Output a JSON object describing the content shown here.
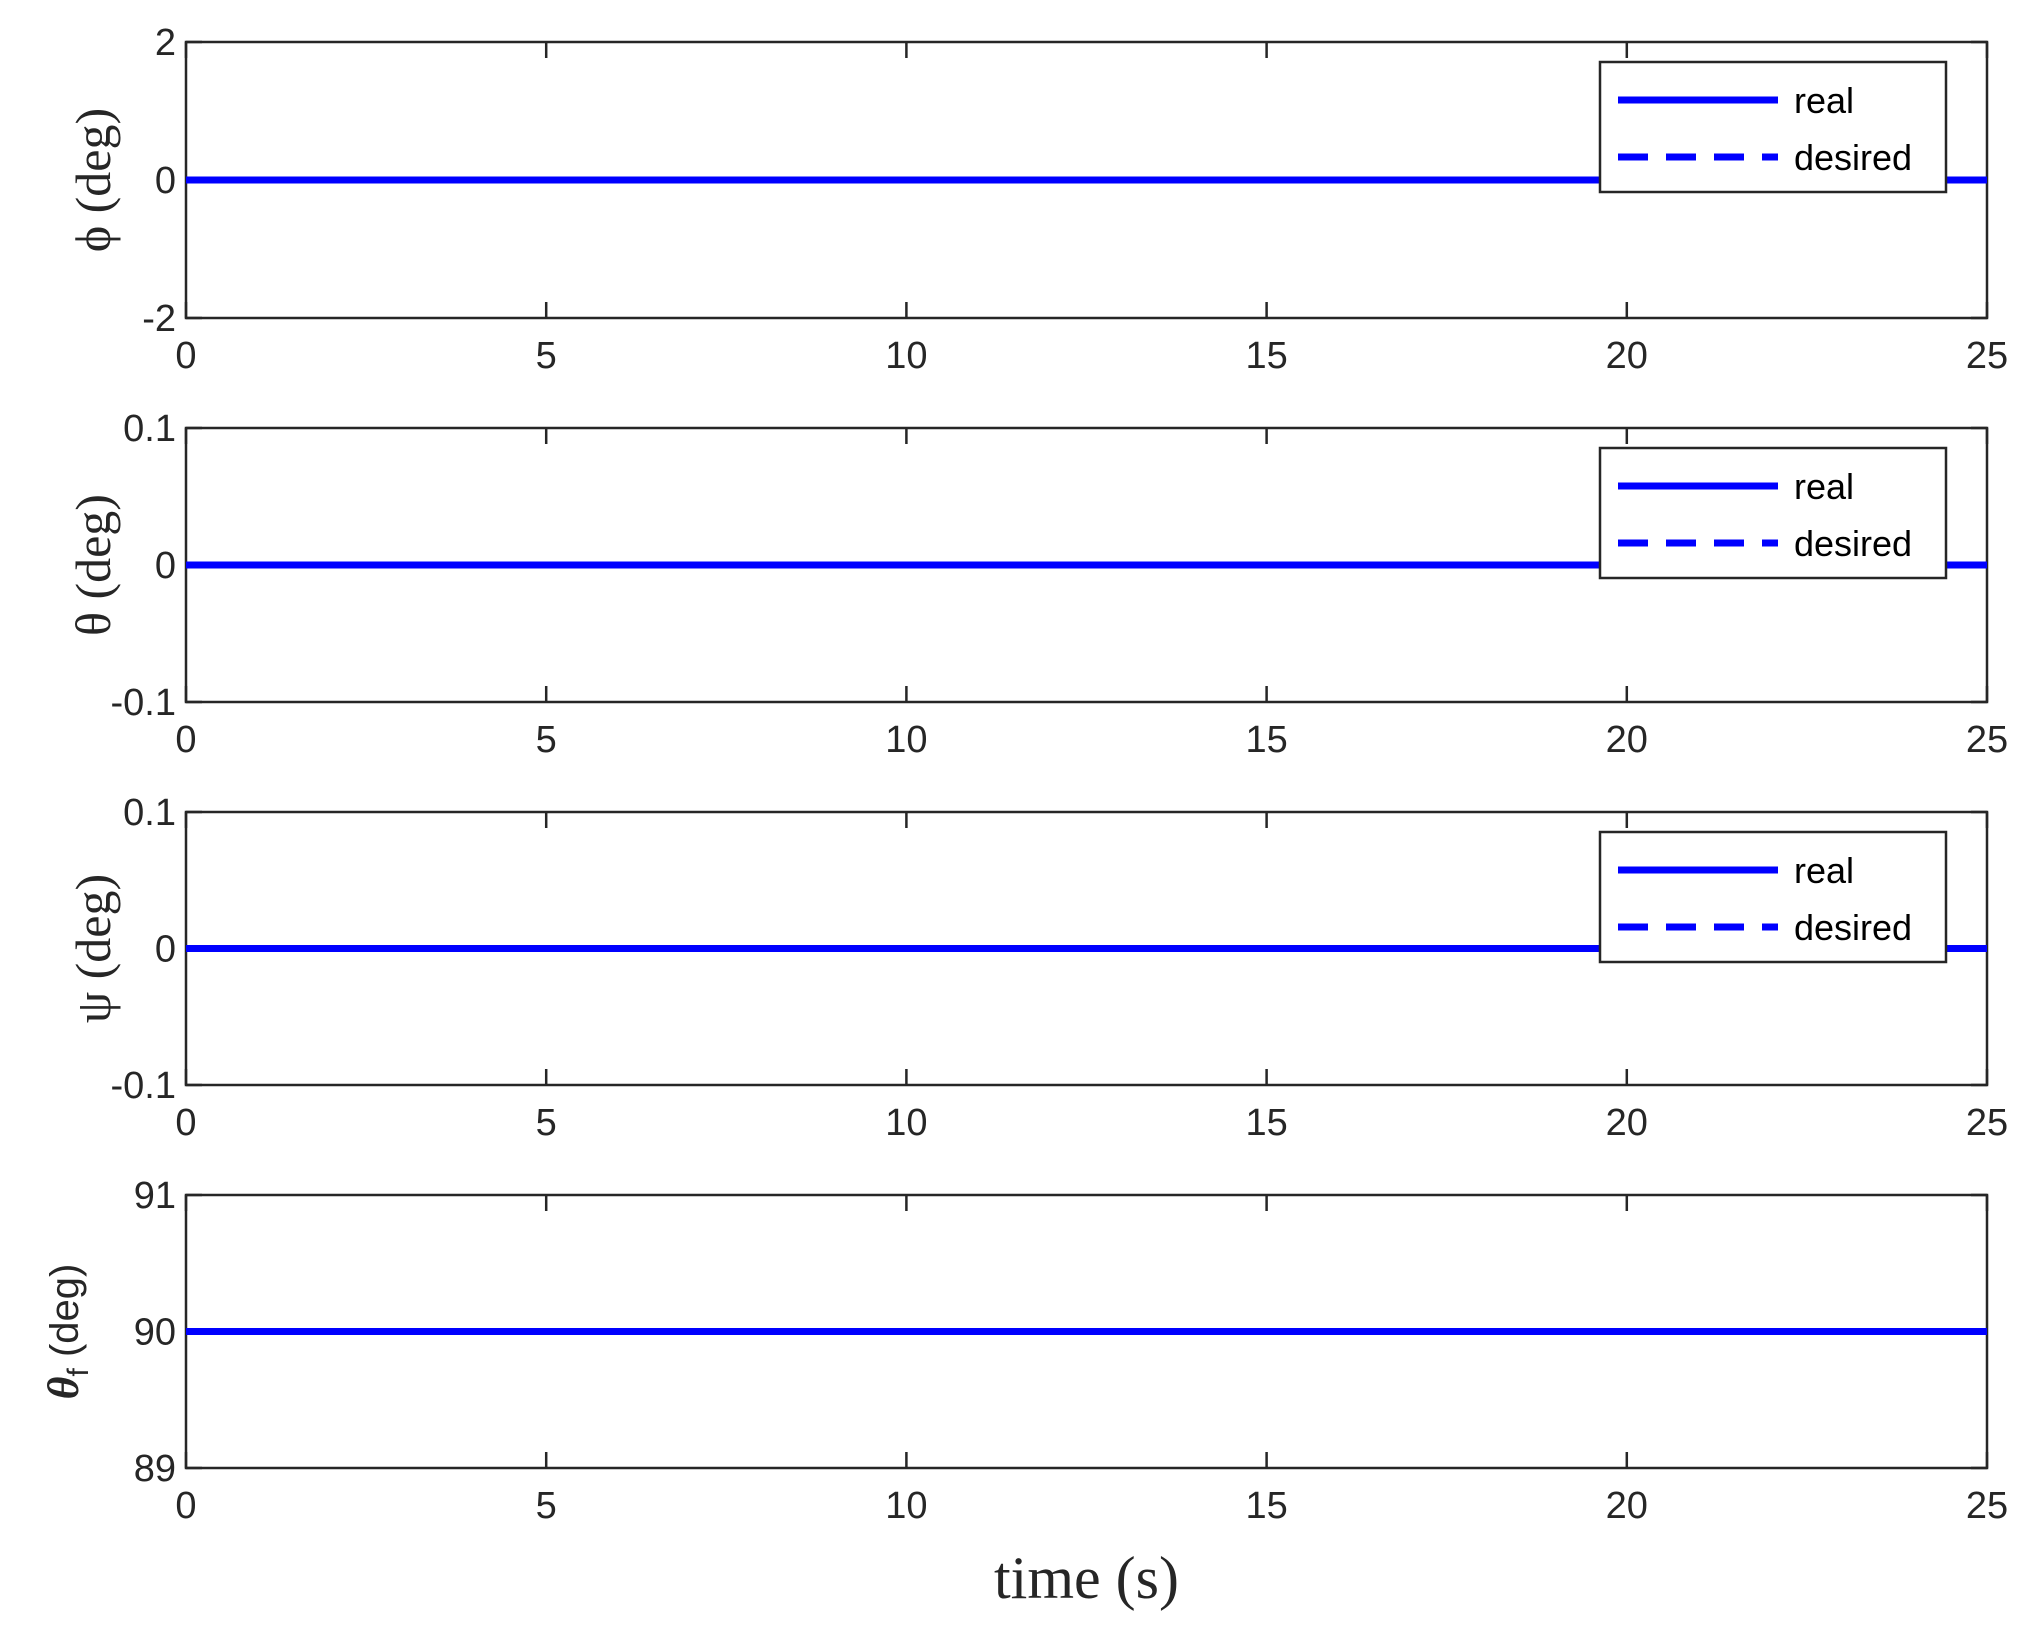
{
  "chart_data": [
    {
      "type": "line",
      "ylabel": "ϕ (deg)",
      "xlim": [
        0,
        25
      ],
      "ylim": [
        -2,
        2
      ],
      "xticks": [
        "0",
        "5",
        "10",
        "15",
        "20",
        "25"
      ],
      "yticks": [
        "-2",
        "0",
        "2"
      ],
      "legend": {
        "position": "top-right",
        "entries": [
          "real",
          "desired"
        ]
      },
      "series": [
        {
          "name": "real",
          "style": "solid",
          "color": "#0000ff",
          "x": [
            0,
            25
          ],
          "y": [
            0,
            0
          ]
        },
        {
          "name": "desired",
          "style": "dashed",
          "color": "#0000ff",
          "x": [
            0,
            25
          ],
          "y": [
            0,
            0
          ]
        }
      ]
    },
    {
      "type": "line",
      "ylabel": "θ (deg)",
      "xlim": [
        0,
        25
      ],
      "ylim": [
        -0.1,
        0.1
      ],
      "xticks": [
        "0",
        "5",
        "10",
        "15",
        "20",
        "25"
      ],
      "yticks": [
        "-0.1",
        "0",
        "0.1"
      ],
      "legend": {
        "position": "top-right",
        "entries": [
          "real",
          "desired"
        ]
      },
      "series": [
        {
          "name": "real",
          "style": "solid",
          "color": "#0000ff",
          "x": [
            0,
            25
          ],
          "y": [
            0,
            0
          ]
        },
        {
          "name": "desired",
          "style": "dashed",
          "color": "#0000ff",
          "x": [
            0,
            25
          ],
          "y": [
            0,
            0
          ]
        }
      ]
    },
    {
      "type": "line",
      "ylabel": "ψ (deg)",
      "xlim": [
        0,
        25
      ],
      "ylim": [
        -0.1,
        0.1
      ],
      "xticks": [
        "0",
        "5",
        "10",
        "15",
        "20",
        "25"
      ],
      "yticks": [
        "-0.1",
        "0",
        "0.1"
      ],
      "legend": {
        "position": "top-right",
        "entries": [
          "real",
          "desired"
        ]
      },
      "series": [
        {
          "name": "real",
          "style": "solid",
          "color": "#0000ff",
          "x": [
            0,
            25
          ],
          "y": [
            0,
            0
          ]
        },
        {
          "name": "desired",
          "style": "dashed",
          "color": "#0000ff",
          "x": [
            0,
            25
          ],
          "y": [
            0,
            0
          ]
        }
      ]
    },
    {
      "type": "line",
      "ylabel": "θf (deg)",
      "ylabel_main": "θ",
      "ylabel_sub": "f",
      "ylabel_rest": " (deg)",
      "xlabel": "time (s)",
      "xlim": [
        0,
        25
      ],
      "ylim": [
        89,
        91
      ],
      "xticks": [
        "0",
        "5",
        "10",
        "15",
        "20",
        "25"
      ],
      "yticks": [
        "89",
        "90",
        "91"
      ],
      "series": [
        {
          "style": "solid",
          "color": "#0000ff",
          "x": [
            0,
            25
          ],
          "y": [
            90,
            90
          ]
        }
      ]
    }
  ]
}
